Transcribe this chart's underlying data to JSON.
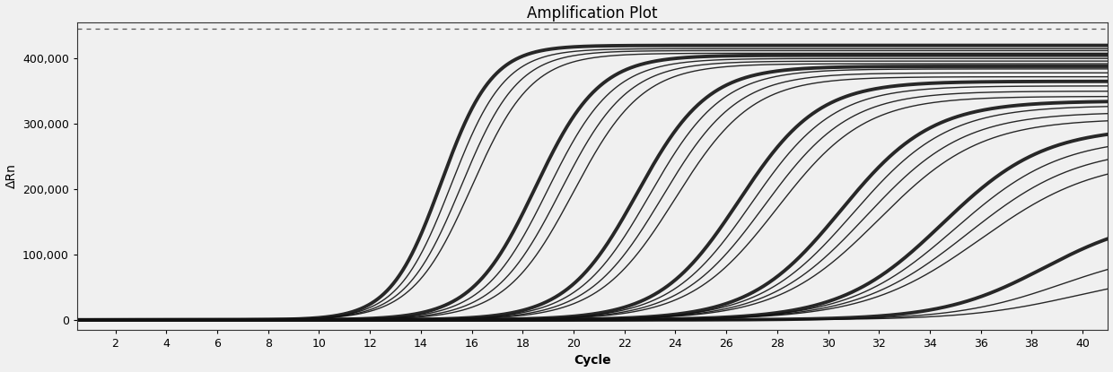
{
  "title": "Amplification Plot",
  "xlabel": "Cycle",
  "ylabel": "ΔRn",
  "xlim": [
    0.5,
    41
  ],
  "ylim": [
    -15000,
    455000
  ],
  "xticks": [
    2,
    4,
    6,
    8,
    10,
    12,
    14,
    16,
    18,
    20,
    22,
    24,
    26,
    28,
    30,
    32,
    34,
    36,
    38,
    40
  ],
  "yticks": [
    0,
    100000,
    200000,
    300000,
    400000
  ],
  "ytick_labels": [
    "0",
    "100,000",
    "200,000",
    "300,000",
    "400,000"
  ],
  "dashed_line_y": 445000,
  "background_color": "#f0f0f0",
  "curves": [
    {
      "midpoint": 14.8,
      "plateau": 420000,
      "rate": 1.0,
      "lw": 2.8
    },
    {
      "midpoint": 15.2,
      "plateau": 415000,
      "rate": 0.95,
      "lw": 1.0
    },
    {
      "midpoint": 15.6,
      "plateau": 412000,
      "rate": 0.9,
      "lw": 1.0
    },
    {
      "midpoint": 16.0,
      "plateau": 408000,
      "rate": 0.85,
      "lw": 1.0
    },
    {
      "midpoint": 18.5,
      "plateau": 405000,
      "rate": 0.8,
      "lw": 2.8
    },
    {
      "midpoint": 19.0,
      "plateau": 400000,
      "rate": 0.78,
      "lw": 1.0
    },
    {
      "midpoint": 19.5,
      "plateau": 396000,
      "rate": 0.76,
      "lw": 1.0
    },
    {
      "midpoint": 20.0,
      "plateau": 392000,
      "rate": 0.74,
      "lw": 1.0
    },
    {
      "midpoint": 22.5,
      "plateau": 388000,
      "rate": 0.72,
      "lw": 2.8
    },
    {
      "midpoint": 23.0,
      "plateau": 384000,
      "rate": 0.7,
      "lw": 1.0
    },
    {
      "midpoint": 23.5,
      "plateau": 378000,
      "rate": 0.68,
      "lw": 1.0
    },
    {
      "midpoint": 24.0,
      "plateau": 372000,
      "rate": 0.66,
      "lw": 1.0
    },
    {
      "midpoint": 26.5,
      "plateau": 365000,
      "rate": 0.64,
      "lw": 2.8
    },
    {
      "midpoint": 27.0,
      "plateau": 358000,
      "rate": 0.62,
      "lw": 1.0
    },
    {
      "midpoint": 27.5,
      "plateau": 350000,
      "rate": 0.6,
      "lw": 1.0
    },
    {
      "midpoint": 28.0,
      "plateau": 342000,
      "rate": 0.58,
      "lw": 1.0
    },
    {
      "midpoint": 30.5,
      "plateau": 335000,
      "rate": 0.56,
      "lw": 2.8
    },
    {
      "midpoint": 31.0,
      "plateau": 328000,
      "rate": 0.54,
      "lw": 1.0
    },
    {
      "midpoint": 31.5,
      "plateau": 318000,
      "rate": 0.52,
      "lw": 1.0
    },
    {
      "midpoint": 32.0,
      "plateau": 308000,
      "rate": 0.5,
      "lw": 1.0
    },
    {
      "midpoint": 34.5,
      "plateau": 295000,
      "rate": 0.5,
      "lw": 2.8
    },
    {
      "midpoint": 35.0,
      "plateau": 280000,
      "rate": 0.48,
      "lw": 1.0
    },
    {
      "midpoint": 35.5,
      "plateau": 265000,
      "rate": 0.46,
      "lw": 1.0
    },
    {
      "midpoint": 36.0,
      "plateau": 248000,
      "rate": 0.44,
      "lw": 1.0
    },
    {
      "midpoint": 38.5,
      "plateau": 160000,
      "rate": 0.5,
      "lw": 2.8
    },
    {
      "midpoint": 39.2,
      "plateau": 110000,
      "rate": 0.48,
      "lw": 1.0
    },
    {
      "midpoint": 39.8,
      "plateau": 75000,
      "rate": 0.46,
      "lw": 1.0
    }
  ],
  "line_color": "#111111",
  "title_fontsize": 12,
  "axis_fontsize": 10,
  "tick_fontsize": 9
}
